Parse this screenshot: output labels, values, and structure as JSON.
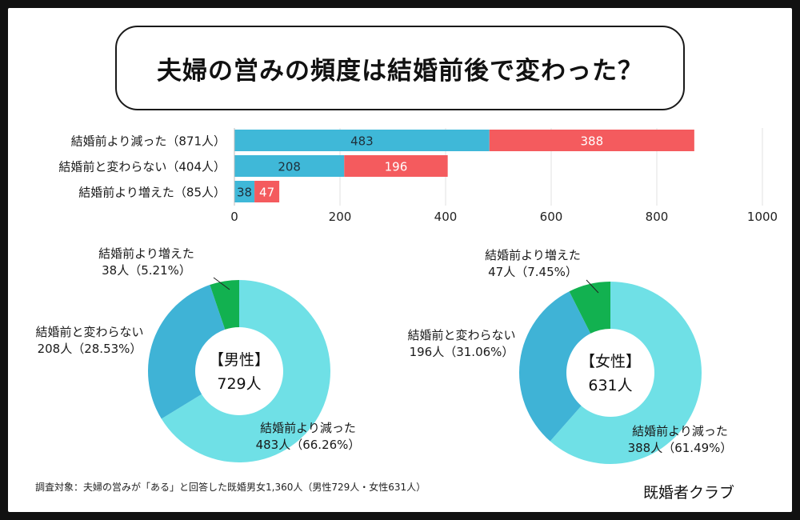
{
  "title": "夫婦の営みの頻度は結婚前後で変わった？",
  "colors": {
    "bar_male": "#3fb8d8",
    "bar_female": "#f45b5e",
    "donut_decreased": "#6fe0e6",
    "donut_unchanged": "#3fb3d6",
    "donut_increased": "#12b150"
  },
  "chart_data": [
    {
      "type": "bar",
      "orientation": "horizontal",
      "stacked": true,
      "categories": [
        "結婚前より減った（871人）",
        "結婚前と変わらない（404人）",
        "結婚前より増えた（85人）"
      ],
      "series": [
        {
          "values": [
            483,
            208,
            38
          ]
        },
        {
          "values": [
            388,
            196,
            47
          ]
        }
      ],
      "xlim": [
        0,
        1000
      ],
      "xticks": [
        "0",
        "200",
        "400",
        "600",
        "800",
        "1000"
      ],
      "grid": true,
      "legend": "none"
    },
    {
      "type": "pie",
      "donut": true,
      "center_label": [
        "【男性】",
        "729人"
      ],
      "slices": [
        {
          "label": "結婚前より減った",
          "detail": "483人（66.26%）",
          "value": 483,
          "percent": 66.26
        },
        {
          "label": "結婚前と変わらない",
          "detail": "208人（28.53%）",
          "value": 208,
          "percent": 28.53
        },
        {
          "label": "結婚前より増えた",
          "detail": "38人（5.21%）",
          "value": 38,
          "percent": 5.21
        }
      ]
    },
    {
      "type": "pie",
      "donut": true,
      "center_label": [
        "【女性】",
        "631人"
      ],
      "slices": [
        {
          "label": "結婚前より減った",
          "detail": "388人（61.49%）",
          "value": 388,
          "percent": 61.49
        },
        {
          "label": "結婚前と変わらない",
          "detail": "196人（31.06%）",
          "value": 196,
          "percent": 31.06
        },
        {
          "label": "結婚前より増えた",
          "detail": "47人（7.45%）",
          "value": 47,
          "percent": 7.45
        }
      ]
    }
  ],
  "footnote": "調査対象：夫婦の営みが「ある」と回答した既婚男女1,360人（男性729人・女性631人）",
  "brand": "既婚者クラブ"
}
